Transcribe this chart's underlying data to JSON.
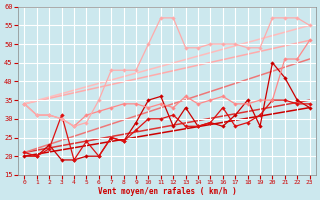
{
  "background_color": "#cce8ee",
  "grid_color": "#ffffff",
  "xlabel": "Vent moyen/en rafales ( km/h )",
  "xlim": [
    -0.5,
    23.5
  ],
  "ylim": [
    15,
    60
  ],
  "yticks": [
    15,
    20,
    25,
    30,
    35,
    40,
    45,
    50,
    55,
    60
  ],
  "xticks": [
    0,
    1,
    2,
    3,
    4,
    5,
    6,
    7,
    8,
    9,
    10,
    11,
    12,
    13,
    14,
    15,
    16,
    17,
    18,
    19,
    20,
    21,
    22,
    23
  ],
  "series": [
    {
      "x": [
        0,
        1,
        2,
        3,
        4,
        5,
        6,
        7,
        8,
        9,
        10,
        11,
        12,
        13,
        14,
        15,
        16,
        17,
        18,
        19,
        20,
        21,
        22,
        23
      ],
      "y": [
        20,
        20,
        23,
        19,
        19,
        20,
        20,
        25,
        24,
        29,
        35,
        36,
        28,
        33,
        28,
        29,
        28,
        31,
        35,
        28,
        45,
        41,
        35,
        33
      ],
      "color": "#cc0000",
      "lw": 0.9,
      "marker": "D",
      "ms": 2.2
    },
    {
      "x": [
        0,
        1,
        2,
        3,
        4,
        5,
        6,
        7,
        8,
        9,
        10,
        11,
        12,
        13,
        14,
        15,
        16,
        17,
        18,
        19,
        20,
        21,
        22,
        23
      ],
      "y": [
        21,
        20,
        22,
        31,
        19,
        24,
        20,
        25,
        24,
        27,
        30,
        30,
        31,
        28,
        28,
        29,
        33,
        28,
        29,
        31,
        35,
        35,
        34,
        34
      ],
      "color": "#dd1111",
      "lw": 0.9,
      "marker": "D",
      "ms": 2.2
    },
    {
      "x": [
        0,
        1,
        2,
        3,
        4,
        5,
        6,
        7,
        8,
        9,
        10,
        11,
        12,
        13,
        14,
        15,
        16,
        17,
        18,
        19,
        20,
        21,
        22,
        23
      ],
      "y": [
        34,
        31,
        31,
        30,
        28,
        31,
        32,
        33,
        34,
        34,
        33,
        34,
        33,
        36,
        34,
        35,
        36,
        34,
        34,
        35,
        35,
        46,
        46,
        51
      ],
      "color": "#ff8888",
      "lw": 0.9,
      "marker": "D",
      "ms": 2.2
    },
    {
      "x": [
        0,
        1,
        2,
        3,
        4,
        5,
        6,
        7,
        8,
        9,
        10,
        11,
        12,
        13,
        14,
        15,
        16,
        17,
        18,
        19,
        20,
        21,
        22,
        23
      ],
      "y": [
        34,
        31,
        31,
        30,
        28,
        29,
        35,
        43,
        43,
        43,
        50,
        57,
        57,
        49,
        49,
        50,
        50,
        50,
        49,
        49,
        57,
        57,
        57,
        55
      ],
      "color": "#ffaaaa",
      "lw": 0.9,
      "marker": "D",
      "ms": 2.2
    },
    {
      "x": [
        0,
        23
      ],
      "y": [
        20,
        33
      ],
      "color": "#cc0000",
      "lw": 1.1,
      "marker": null,
      "ms": 0
    },
    {
      "x": [
        0,
        23
      ],
      "y": [
        21,
        35
      ],
      "color": "#dd3333",
      "lw": 1.1,
      "marker": null,
      "ms": 0
    },
    {
      "x": [
        0,
        23
      ],
      "y": [
        21,
        46
      ],
      "color": "#ee7777",
      "lw": 1.1,
      "marker": null,
      "ms": 0
    },
    {
      "x": [
        0,
        23
      ],
      "y": [
        34,
        51
      ],
      "color": "#ffaaaa",
      "lw": 1.1,
      "marker": null,
      "ms": 0
    },
    {
      "x": [
        0,
        23
      ],
      "y": [
        34,
        55
      ],
      "color": "#ffbbbb",
      "lw": 1.1,
      "marker": null,
      "ms": 0
    }
  ]
}
